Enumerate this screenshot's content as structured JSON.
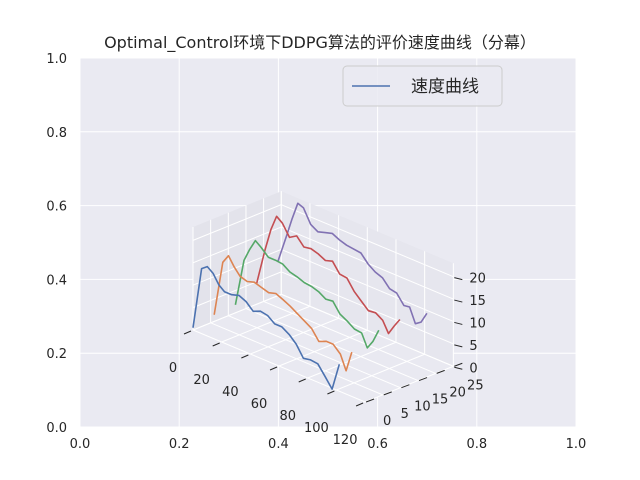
{
  "chart_data": {
    "type": "line",
    "title": "Optimal_Control环境下DDPG算法的评价速度曲线（分幕）",
    "legend": {
      "label": "速度曲线",
      "placement": "top-right"
    },
    "projection": "3d",
    "grid": true,
    "outer_axes": {
      "xlim": [
        0,
        1
      ],
      "ylim": [
        0,
        1
      ],
      "xticks": [
        "0.0",
        "0.2",
        "0.4",
        "0.6",
        "0.8",
        "1.0"
      ],
      "yticks": [
        "0.0",
        "0.2",
        "0.4",
        "0.6",
        "0.8",
        "1.0"
      ]
    },
    "axis3d": {
      "xlim": [
        0,
        120
      ],
      "ylim": [
        0,
        25
      ],
      "zlim": [
        0,
        23
      ],
      "xticks": [
        "0",
        "20",
        "40",
        "60",
        "80",
        "100",
        "120"
      ],
      "yticks": [
        "0",
        "5",
        "10",
        "15",
        "20",
        "25"
      ],
      "zticks": [
        "0",
        "5",
        "10",
        "15",
        "20"
      ]
    },
    "series": [
      {
        "y": 0,
        "color": "#4c72b0",
        "x": [
          0,
          6,
          10,
          14,
          18,
          22,
          27,
          32,
          37,
          42,
          47,
          52,
          57,
          62,
          67,
          72,
          77,
          82,
          87,
          92,
          97,
          102
        ],
        "z": [
          0.5,
          14.5,
          15.5,
          14.5,
          12.5,
          11.5,
          11.5,
          12,
          11.3,
          9.8,
          10.5,
          10.2,
          9,
          9,
          8,
          6.5,
          4,
          4.3,
          4.1,
          2,
          -0.2,
          6
        ]
      },
      {
        "y": 6,
        "color": "#dd8452",
        "x": [
          0,
          6,
          10,
          14,
          18,
          23,
          28,
          33,
          38,
          43,
          48,
          53,
          58,
          63,
          68,
          73,
          78,
          83,
          88,
          92,
          96
        ],
        "z": [
          1.5,
          14,
          16,
          14,
          12.5,
          12,
          12.5,
          12,
          11.5,
          12,
          11.3,
          10.5,
          9.5,
          8.5,
          7.5,
          5.3,
          6,
          6,
          4.5,
          1.3,
          6
        ]
      },
      {
        "y": 12,
        "color": "#55a868",
        "x": [
          0,
          6,
          10,
          14,
          18,
          23,
          28,
          33,
          38,
          43,
          48,
          53,
          58,
          63,
          68,
          73,
          78,
          83,
          88,
          92,
          96,
          100
        ],
        "z": [
          1.8,
          12.5,
          15.5,
          18,
          17,
          15.5,
          15.5,
          15.3,
          14.2,
          13.8,
          13.2,
          13,
          12.5,
          11.5,
          11.7,
          9.5,
          8.6,
          7.5,
          7.3,
          4.5,
          6.5,
          9.5
        ]
      },
      {
        "y": 18,
        "color": "#c44e52",
        "x": [
          0,
          6,
          10,
          14,
          18,
          23,
          28,
          33,
          38,
          43,
          48,
          53,
          58,
          63,
          68,
          73,
          78,
          83,
          88,
          92,
          96,
          100
        ],
        "z": [
          4.5,
          13,
          18,
          21.5,
          20.5,
          18,
          19,
          17.2,
          17.5,
          17,
          16.2,
          16.7,
          14.5,
          14.3,
          12,
          10.5,
          9,
          9.2,
          8.2,
          5.8,
          8,
          10
        ]
      },
      {
        "y": 24,
        "color": "#8172b3",
        "x": [
          0,
          6,
          10,
          14,
          18,
          23,
          28,
          33,
          38,
          43,
          48,
          53,
          58,
          63,
          68,
          73,
          78,
          83,
          88,
          92,
          96,
          100,
          104
        ],
        "z": [
          7.5,
          14,
          18.5,
          22.5,
          22,
          19,
          18,
          18.5,
          19,
          18.2,
          17.7,
          17.5,
          17.3,
          15.5,
          14.4,
          13.8,
          12,
          11.7,
          9.6,
          9.8,
          6.6,
          7.5,
          10
        ]
      }
    ]
  }
}
